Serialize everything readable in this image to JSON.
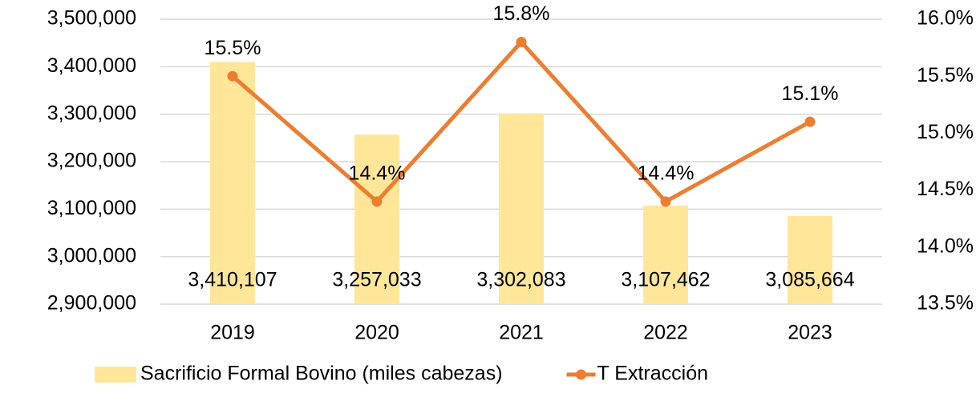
{
  "chart_data": {
    "type": "bar",
    "categories": [
      "2019",
      "2020",
      "2021",
      "2022",
      "2023"
    ],
    "series": [
      {
        "name": "Sacrificio Formal Bovino (miles cabezas)",
        "type": "bar",
        "color": "#ffe699",
        "values": [
          3410107,
          3257033,
          3302083,
          3107462,
          3085664
        ],
        "value_labels": [
          "3,410,107",
          "3,257,033",
          "3,302,083",
          "3,107,462",
          "3,085,664"
        ]
      },
      {
        "name": "T Extracción",
        "type": "line",
        "axis": "y2",
        "color": "#ed7d31",
        "values": [
          15.5,
          14.4,
          15.8,
          14.4,
          15.1
        ],
        "value_labels": [
          "15.5%",
          "14.4%",
          "15.8%",
          "14.4%",
          "15.1%"
        ]
      }
    ],
    "ylim": [
      2900000,
      3500000
    ],
    "yticks": [
      {
        "value": 2900000,
        "label": "2,900,000"
      },
      {
        "value": 3000000,
        "label": "3,000,000"
      },
      {
        "value": 3100000,
        "label": "3,100,000"
      },
      {
        "value": 3200000,
        "label": "3,200,000"
      },
      {
        "value": 3300000,
        "label": "3,300,000"
      },
      {
        "value": 3400000,
        "label": "3,400,000"
      },
      {
        "value": 3500000,
        "label": "3,500,000"
      }
    ],
    "y2lim": [
      13.5,
      16.0
    ],
    "y2ticks": [
      {
        "value": 13.5,
        "label": "13.5%"
      },
      {
        "value": 14.0,
        "label": "14.0%"
      },
      {
        "value": 14.5,
        "label": "14.5%"
      },
      {
        "value": 15.0,
        "label": "15.0%"
      },
      {
        "value": 15.5,
        "label": "15.5%"
      },
      {
        "value": 16.0,
        "label": "16.0%"
      }
    ],
    "grid": true,
    "legend": "bottom"
  }
}
